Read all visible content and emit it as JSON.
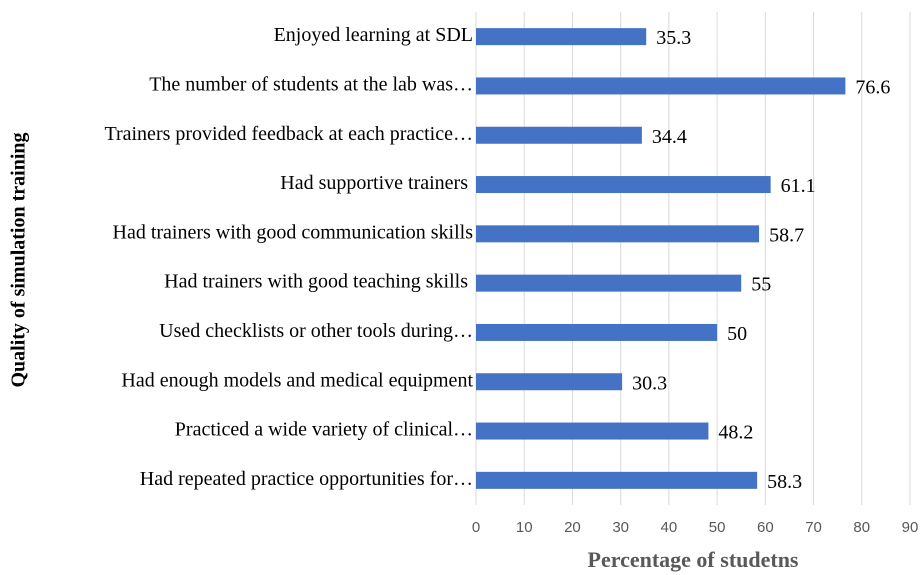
{
  "chart_data": {
    "type": "bar",
    "orientation": "horizontal",
    "x_label": "Percentage of studetns",
    "y_label": "Quality of simulation training",
    "categories": [
      "Enjoyed learning at SDL",
      "The number of students at the lab was…",
      "Trainers provided feedback at each practice…",
      "Had supportive trainers ",
      "Had trainers with good communication skills",
      "Had trainers with good teaching skills ",
      "Used checklists or other tools during…",
      "Had enough models and medical equipment",
      "Practiced a wide variety of clinical…",
      "Had repeated practice opportunities for…"
    ],
    "values": [
      35.3,
      76.6,
      34.4,
      61.1,
      58.7,
      55,
      50,
      30.3,
      48.2,
      58.3
    ],
    "color": "#4472c4",
    "xlim": [
      0,
      90
    ],
    "xticks": [
      0,
      10,
      20,
      30,
      40,
      50,
      60,
      70,
      80,
      90
    ],
    "grid": true
  }
}
